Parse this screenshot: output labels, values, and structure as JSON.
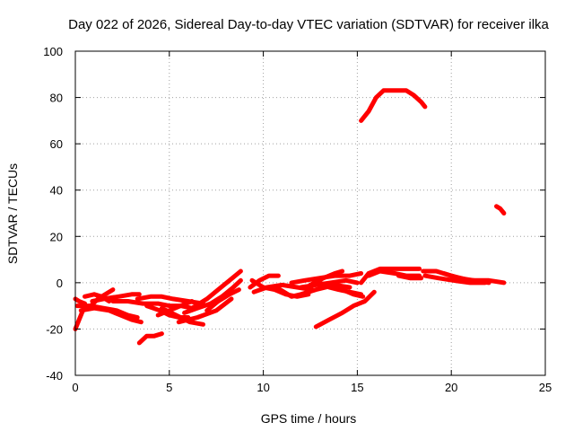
{
  "chart_data": {
    "type": "line",
    "title": "Day 022 of 2026, Sidereal Day-to-day VTEC variation (SDTVAR) for receiver ilka",
    "xlabel": "GPS time / hours",
    "ylabel": "SDTVAR / TECUs",
    "xlim": [
      0,
      25
    ],
    "ylim": [
      -40,
      100
    ],
    "xticks": [
      0,
      5,
      10,
      15,
      20,
      25
    ],
    "yticks": [
      -40,
      -20,
      0,
      20,
      40,
      60,
      80,
      100
    ],
    "grid": true,
    "color": "#ff0000",
    "series": [
      {
        "name": "arc-1",
        "points": [
          [
            0.0,
            -20
          ],
          [
            0.2,
            -16
          ],
          [
            0.4,
            -12
          ],
          [
            0.5,
            -9
          ]
        ]
      },
      {
        "name": "arc-2",
        "points": [
          [
            0.0,
            -7
          ],
          [
            0.2,
            -8
          ],
          [
            0.5,
            -9
          ]
        ]
      },
      {
        "name": "arc-3",
        "points": [
          [
            0.1,
            -10
          ],
          [
            0.8,
            -10
          ],
          [
            1.5,
            -11
          ],
          [
            2.2,
            -12
          ],
          [
            2.8,
            -14
          ],
          [
            3.3,
            -15
          ]
        ]
      },
      {
        "name": "arc-4",
        "points": [
          [
            0.3,
            -12
          ],
          [
            1.0,
            -11
          ],
          [
            1.8,
            -12
          ],
          [
            2.4,
            -14
          ],
          [
            3.0,
            -16
          ],
          [
            3.5,
            -17
          ]
        ]
      },
      {
        "name": "arc-5",
        "points": [
          [
            0.7,
            -11
          ],
          [
            1.2,
            -7
          ],
          [
            1.6,
            -5
          ],
          [
            2.0,
            -3
          ]
        ]
      },
      {
        "name": "arc-6",
        "points": [
          [
            0.9,
            -8
          ],
          [
            1.5,
            -7
          ],
          [
            2.3,
            -6
          ],
          [
            3.0,
            -5
          ],
          [
            3.4,
            -5
          ]
        ]
      },
      {
        "name": "arc-7",
        "points": [
          [
            0.5,
            -6
          ],
          [
            1.0,
            -5
          ],
          [
            1.4,
            -6
          ],
          [
            1.8,
            -8
          ]
        ]
      },
      {
        "name": "arc-8",
        "points": [
          [
            2.0,
            -8
          ],
          [
            2.8,
            -8
          ],
          [
            3.6,
            -9
          ],
          [
            4.4,
            -9
          ],
          [
            5.0,
            -10
          ],
          [
            5.6,
            -10
          ],
          [
            6.2,
            -11
          ]
        ]
      },
      {
        "name": "arc-9",
        "points": [
          [
            3.3,
            -7
          ],
          [
            4.0,
            -6
          ],
          [
            4.6,
            -6
          ],
          [
            5.2,
            -7
          ],
          [
            6.0,
            -8
          ],
          [
            6.8,
            -9
          ]
        ]
      },
      {
        "name": "arc-10",
        "points": [
          [
            3.8,
            -10
          ],
          [
            4.5,
            -12
          ],
          [
            5.0,
            -14
          ],
          [
            5.5,
            -15
          ],
          [
            6.0,
            -15
          ]
        ]
      },
      {
        "name": "arc-11",
        "points": [
          [
            4.6,
            -11
          ],
          [
            5.1,
            -13
          ],
          [
            5.6,
            -15
          ],
          [
            6.1,
            -17
          ],
          [
            6.8,
            -18
          ]
        ]
      },
      {
        "name": "arc-12",
        "points": [
          [
            4.4,
            -14
          ],
          [
            5.0,
            -12
          ],
          [
            5.6,
            -10
          ],
          [
            6.2,
            -8
          ]
        ]
      },
      {
        "name": "arc-13",
        "points": [
          [
            5.8,
            -13
          ],
          [
            6.5,
            -11
          ],
          [
            7.2,
            -9
          ],
          [
            7.8,
            -6
          ],
          [
            8.4,
            -2
          ],
          [
            8.8,
            1
          ]
        ]
      },
      {
        "name": "arc-14",
        "points": [
          [
            6.2,
            -11
          ],
          [
            7.0,
            -7
          ],
          [
            7.6,
            -3
          ],
          [
            8.2,
            1
          ],
          [
            8.8,
            5
          ]
        ]
      },
      {
        "name": "arc-15",
        "points": [
          [
            5.5,
            -17
          ],
          [
            6.5,
            -15
          ],
          [
            7.5,
            -12
          ],
          [
            8.3,
            -7
          ]
        ]
      },
      {
        "name": "arc-16",
        "points": [
          [
            7.0,
            -12
          ],
          [
            7.6,
            -8
          ],
          [
            8.2,
            -5
          ],
          [
            8.7,
            -3
          ]
        ]
      },
      {
        "name": "arc-17",
        "points": [
          [
            3.4,
            -26
          ],
          [
            3.8,
            -23
          ],
          [
            4.2,
            -23
          ],
          [
            4.6,
            -22
          ]
        ]
      },
      {
        "name": "arc-18",
        "points": [
          [
            9.3,
            -2
          ],
          [
            9.8,
            1
          ],
          [
            10.3,
            3
          ],
          [
            10.8,
            3
          ]
        ]
      },
      {
        "name": "arc-19",
        "points": [
          [
            9.4,
            1
          ],
          [
            10.0,
            -2
          ],
          [
            10.6,
            -3
          ],
          [
            11.2,
            -5
          ],
          [
            11.8,
            -6
          ],
          [
            12.4,
            -5
          ]
        ]
      },
      {
        "name": "arc-20",
        "points": [
          [
            9.5,
            -4
          ],
          [
            10.2,
            -2
          ],
          [
            11.0,
            -1
          ],
          [
            11.8,
            -2
          ],
          [
            12.6,
            -3
          ]
        ]
      },
      {
        "name": "arc-21",
        "points": [
          [
            10.2,
            -2
          ],
          [
            10.9,
            -3
          ],
          [
            11.5,
            -6
          ],
          [
            12.0,
            -5
          ],
          [
            12.8,
            -3
          ],
          [
            13.8,
            -1
          ],
          [
            14.6,
            -2
          ]
        ]
      },
      {
        "name": "arc-22",
        "points": [
          [
            11.5,
            0
          ],
          [
            12.2,
            1
          ],
          [
            13.0,
            2
          ],
          [
            13.8,
            3
          ],
          [
            14.6,
            3
          ],
          [
            15.2,
            4
          ]
        ]
      },
      {
        "name": "arc-23",
        "points": [
          [
            12.0,
            -2
          ],
          [
            12.8,
            -1
          ],
          [
            13.6,
            0
          ],
          [
            14.4,
            1
          ],
          [
            15.0,
            0
          ]
        ]
      },
      {
        "name": "arc-24",
        "points": [
          [
            12.5,
            -1
          ],
          [
            13.2,
            2
          ],
          [
            13.8,
            4
          ],
          [
            14.2,
            5
          ]
        ]
      },
      {
        "name": "arc-25",
        "points": [
          [
            12.8,
            0
          ],
          [
            13.5,
            -1
          ],
          [
            14.2,
            -3
          ],
          [
            14.8,
            -5
          ],
          [
            15.3,
            -6
          ]
        ]
      },
      {
        "name": "arc-26",
        "points": [
          [
            13.5,
            -2
          ],
          [
            14.0,
            -3
          ],
          [
            14.6,
            -4
          ],
          [
            15.2,
            -5
          ]
        ]
      },
      {
        "name": "arc-27",
        "points": [
          [
            12.8,
            -19
          ],
          [
            13.5,
            -16
          ],
          [
            14.2,
            -13
          ],
          [
            14.8,
            -10
          ],
          [
            15.4,
            -8
          ],
          [
            15.9,
            -4
          ]
        ]
      },
      {
        "name": "arc-28",
        "points": [
          [
            15.2,
            70
          ],
          [
            15.6,
            74
          ],
          [
            16.0,
            80
          ],
          [
            16.4,
            83
          ],
          [
            17.0,
            83
          ],
          [
            17.6,
            83
          ],
          [
            18.0,
            81
          ],
          [
            18.4,
            78
          ],
          [
            18.6,
            76
          ]
        ]
      },
      {
        "name": "arc-29",
        "points": [
          [
            15.2,
            0
          ],
          [
            15.6,
            4
          ],
          [
            16.2,
            6
          ],
          [
            17.0,
            6
          ],
          [
            17.8,
            6
          ],
          [
            18.3,
            6
          ]
        ]
      },
      {
        "name": "arc-30",
        "points": [
          [
            15.6,
            3
          ],
          [
            16.2,
            5
          ],
          [
            17.0,
            4
          ],
          [
            17.6,
            3
          ],
          [
            18.3,
            3
          ]
        ]
      },
      {
        "name": "arc-31",
        "points": [
          [
            17.2,
            3
          ],
          [
            17.8,
            2
          ],
          [
            18.4,
            2
          ]
        ]
      },
      {
        "name": "arc-32",
        "points": [
          [
            18.5,
            5
          ],
          [
            19.2,
            5
          ],
          [
            20.0,
            3
          ],
          [
            21.0,
            1
          ],
          [
            22.0,
            1
          ],
          [
            22.8,
            0
          ]
        ]
      },
      {
        "name": "arc-33",
        "points": [
          [
            18.6,
            3
          ],
          [
            19.3,
            2
          ],
          [
            20.1,
            1
          ],
          [
            21.0,
            0
          ],
          [
            21.8,
            0
          ]
        ]
      },
      {
        "name": "arc-34",
        "points": [
          [
            19.6,
            4
          ],
          [
            20.4,
            2
          ],
          [
            21.2,
            1
          ],
          [
            22.0,
            0
          ]
        ]
      },
      {
        "name": "arc-35",
        "points": [
          [
            22.4,
            33
          ],
          [
            22.6,
            32
          ],
          [
            22.8,
            30
          ]
        ]
      }
    ]
  }
}
